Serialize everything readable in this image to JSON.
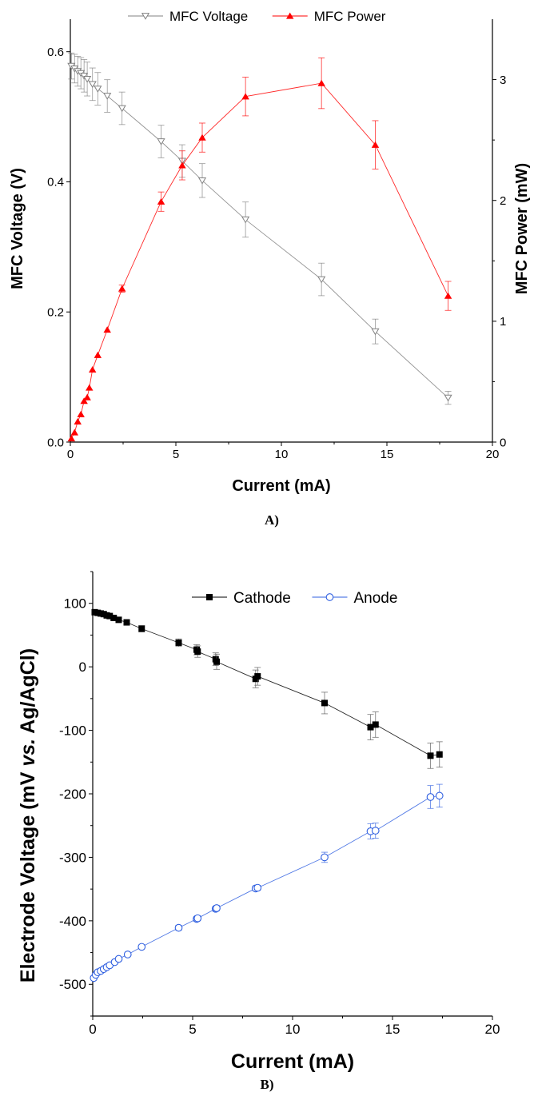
{
  "chart_data": [
    {
      "type": "line",
      "panel_label": "A)",
      "xlabel": "Current (mA)",
      "ylabel": "MFC Voltage (V)",
      "y2label": "MFC Power (mW)",
      "xlim": [
        0,
        20
      ],
      "ylim": [
        0,
        0.65
      ],
      "y2lim": [
        0,
        3.5
      ],
      "x_ticks": [
        "0",
        "5",
        "10",
        "15",
        "20"
      ],
      "y_ticks": [
        "0.0",
        "0.2",
        "0.4",
        "0.6"
      ],
      "y2_ticks": [
        "0",
        "1",
        "2",
        "3"
      ],
      "legend_position": "top-center",
      "grid": false,
      "series": [
        {
          "name": "MFC Voltage",
          "axis": "left",
          "color": "#808080",
          "marker": "open-triangle-down",
          "points": [
            {
              "x": 0.05,
              "y": 0.578,
              "err": 0.02
            },
            {
              "x": 0.2,
              "y": 0.574,
              "err": 0.022
            },
            {
              "x": 0.35,
              "y": 0.57,
              "err": 0.023
            },
            {
              "x": 0.5,
              "y": 0.567,
              "err": 0.024
            },
            {
              "x": 0.65,
              "y": 0.563,
              "err": 0.025
            },
            {
              "x": 0.8,
              "y": 0.558,
              "err": 0.026
            },
            {
              "x": 1.05,
              "y": 0.55,
              "err": 0.025
            },
            {
              "x": 1.3,
              "y": 0.543,
              "err": 0.025
            },
            {
              "x": 1.75,
              "y": 0.532,
              "err": 0.025
            },
            {
              "x": 2.45,
              "y": 0.513,
              "err": 0.025
            },
            {
              "x": 4.3,
              "y": 0.462,
              "err": 0.025
            },
            {
              "x": 5.3,
              "y": 0.432,
              "err": 0.025
            },
            {
              "x": 6.25,
              "y": 0.402,
              "err": 0.026
            },
            {
              "x": 8.3,
              "y": 0.342,
              "err": 0.027
            },
            {
              "x": 11.9,
              "y": 0.25,
              "err": 0.025
            },
            {
              "x": 14.45,
              "y": 0.17,
              "err": 0.019
            },
            {
              "x": 17.9,
              "y": 0.068,
              "err": 0.01
            }
          ]
        },
        {
          "name": "MFC Power",
          "axis": "right",
          "color": "#ff0000",
          "marker": "filled-triangle-up",
          "points": [
            {
              "x": 0.05,
              "y": 0.03,
              "err": 0
            },
            {
              "x": 0.2,
              "y": 0.08,
              "err": 0
            },
            {
              "x": 0.35,
              "y": 0.17,
              "err": 0
            },
            {
              "x": 0.5,
              "y": 0.23,
              "err": 0
            },
            {
              "x": 0.65,
              "y": 0.34,
              "err": 0
            },
            {
              "x": 0.8,
              "y": 0.37,
              "err": 0
            },
            {
              "x": 0.9,
              "y": 0.45,
              "err": 0
            },
            {
              "x": 1.05,
              "y": 0.6,
              "err": 0
            },
            {
              "x": 1.3,
              "y": 0.72,
              "err": 0
            },
            {
              "x": 1.75,
              "y": 0.93,
              "err": 0
            },
            {
              "x": 2.45,
              "y": 1.27,
              "err": 0.03
            },
            {
              "x": 4.3,
              "y": 1.99,
              "err": 0.08
            },
            {
              "x": 5.3,
              "y": 2.29,
              "err": 0.12
            },
            {
              "x": 6.25,
              "y": 2.52,
              "err": 0.12
            },
            {
              "x": 8.3,
              "y": 2.86,
              "err": 0.16
            },
            {
              "x": 11.9,
              "y": 2.97,
              "err": 0.21
            },
            {
              "x": 14.45,
              "y": 2.46,
              "err": 0.2
            },
            {
              "x": 17.9,
              "y": 1.21,
              "err": 0.12
            }
          ]
        }
      ]
    },
    {
      "type": "line",
      "panel_label": "B)",
      "xlabel": "Current (mA)",
      "ylabel_prefix": "Electrode Voltage (mV ",
      "ylabel_italic": "vs.",
      "ylabel_suffix": " Ag/AgCl)",
      "xlim": [
        0,
        20
      ],
      "ylim": [
        -550,
        150
      ],
      "x_ticks": [
        "0",
        "5",
        "10",
        "15",
        "20"
      ],
      "y_ticks": [
        "-500",
        "-400",
        "-300",
        "-200",
        "-100",
        "0",
        "100"
      ],
      "legend_position": "top-center",
      "grid": false,
      "series": [
        {
          "name": "Cathode",
          "color": "#000000",
          "marker": "filled-square",
          "points": [
            {
              "x": 0.1,
              "y": 86,
              "err": 2
            },
            {
              "x": 0.25,
              "y": 85,
              "err": 2
            },
            {
              "x": 0.4,
              "y": 84,
              "err": 2
            },
            {
              "x": 0.55,
              "y": 83,
              "err": 2
            },
            {
              "x": 0.7,
              "y": 81,
              "err": 2
            },
            {
              "x": 0.85,
              "y": 80,
              "err": 2
            },
            {
              "x": 1.05,
              "y": 77,
              "err": 2
            },
            {
              "x": 1.3,
              "y": 74,
              "err": 2
            },
            {
              "x": 1.7,
              "y": 70,
              "err": 2
            },
            {
              "x": 2.45,
              "y": 60,
              "err": 5
            },
            {
              "x": 4.3,
              "y": 38,
              "err": 6
            },
            {
              "x": 5.2,
              "y": 27,
              "err": 8
            },
            {
              "x": 5.25,
              "y": 24,
              "err": 9
            },
            {
              "x": 6.15,
              "y": 12,
              "err": 10
            },
            {
              "x": 6.2,
              "y": 8,
              "err": 12
            },
            {
              "x": 8.15,
              "y": -19,
              "err": 14
            },
            {
              "x": 8.25,
              "y": -15,
              "err": 14
            },
            {
              "x": 11.6,
              "y": -57,
              "err": 17
            },
            {
              "x": 13.9,
              "y": -95,
              "err": 20
            },
            {
              "x": 14.15,
              "y": -91,
              "err": 20
            },
            {
              "x": 16.9,
              "y": -140,
              "err": 20
            },
            {
              "x": 17.35,
              "y": -138,
              "err": 20
            }
          ]
        },
        {
          "name": "Anode",
          "color": "#2f5fe0",
          "marker": "open-circle",
          "points": [
            {
              "x": 0.05,
              "y": -490,
              "err": 2
            },
            {
              "x": 0.15,
              "y": -485,
              "err": 2
            },
            {
              "x": 0.25,
              "y": -481,
              "err": 2
            },
            {
              "x": 0.4,
              "y": -479,
              "err": 2
            },
            {
              "x": 0.55,
              "y": -476,
              "err": 2
            },
            {
              "x": 0.7,
              "y": -473,
              "err": 2
            },
            {
              "x": 0.85,
              "y": -470,
              "err": 2
            },
            {
              "x": 1.1,
              "y": -465,
              "err": 2
            },
            {
              "x": 1.3,
              "y": -460,
              "err": 2
            },
            {
              "x": 1.75,
              "y": -453,
              "err": 2
            },
            {
              "x": 2.45,
              "y": -441,
              "err": 3
            },
            {
              "x": 4.3,
              "y": -411,
              "err": 4
            },
            {
              "x": 5.2,
              "y": -397,
              "err": 4
            },
            {
              "x": 5.25,
              "y": -396,
              "err": 4
            },
            {
              "x": 6.15,
              "y": -381,
              "err": 4
            },
            {
              "x": 6.2,
              "y": -380,
              "err": 4
            },
            {
              "x": 8.15,
              "y": -349,
              "err": 4
            },
            {
              "x": 8.25,
              "y": -348,
              "err": 4
            },
            {
              "x": 11.6,
              "y": -300,
              "err": 8
            },
            {
              "x": 13.9,
              "y": -259,
              "err": 12
            },
            {
              "x": 14.15,
              "y": -258,
              "err": 12
            },
            {
              "x": 16.9,
              "y": -205,
              "err": 18
            },
            {
              "x": 17.35,
              "y": -203,
              "err": 18
            }
          ]
        }
      ]
    }
  ]
}
